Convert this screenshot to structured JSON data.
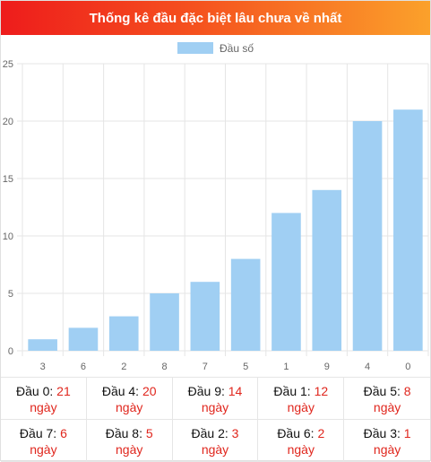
{
  "header": {
    "title": "Thống kê đầu đặc biệt lâu chưa về nhất"
  },
  "colors": {
    "bar": "#a0cff3",
    "grid": "#e5e5e5",
    "axis_text": "#666666",
    "accent": "#e0261d"
  },
  "chart_data": {
    "type": "bar",
    "legend": {
      "label": "Đầu số",
      "placement": "top-center"
    },
    "categories": [
      "3",
      "6",
      "2",
      "8",
      "7",
      "5",
      "1",
      "9",
      "4",
      "0"
    ],
    "values": [
      1,
      2,
      3,
      5,
      6,
      8,
      12,
      14,
      20,
      21
    ],
    "ylim": [
      0,
      25
    ],
    "yticks": [
      0,
      5,
      10,
      15,
      20,
      25
    ],
    "grid": true
  },
  "stats": [
    {
      "label": "Đầu 0:",
      "value": "21",
      "unit": "ngày"
    },
    {
      "label": "Đầu 4:",
      "value": "20",
      "unit": "ngày"
    },
    {
      "label": "Đầu 9:",
      "value": "14",
      "unit": "ngày"
    },
    {
      "label": "Đầu 1:",
      "value": "12",
      "unit": "ngày"
    },
    {
      "label": "Đầu 5:",
      "value": "8",
      "unit": "ngày"
    },
    {
      "label": "Đầu 7:",
      "value": "6",
      "unit": "ngày"
    },
    {
      "label": "Đầu 8:",
      "value": "5",
      "unit": "ngày"
    },
    {
      "label": "Đầu 2:",
      "value": "3",
      "unit": "ngày"
    },
    {
      "label": "Đầu 6:",
      "value": "2",
      "unit": "ngày"
    },
    {
      "label": "Đầu 3:",
      "value": "1",
      "unit": "ngày"
    }
  ]
}
